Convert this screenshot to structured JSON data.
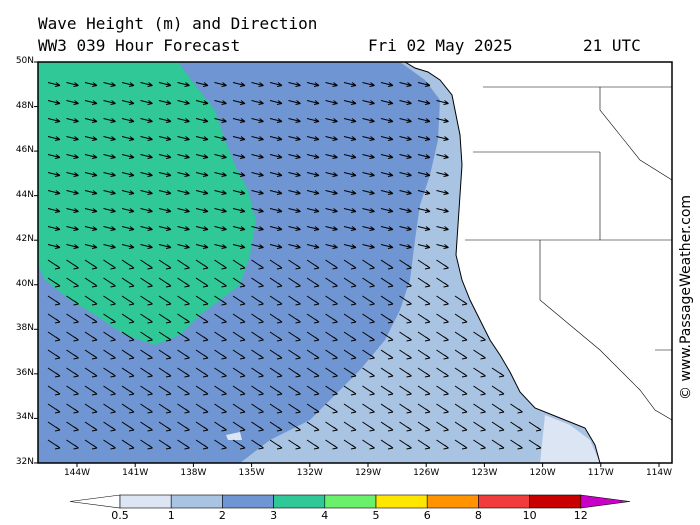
{
  "header": {
    "title": "Wave Height (m) and Direction",
    "model_line": "WW3 039 Hour Forecast",
    "date": "Fri 02 May 2025",
    "time": "21 UTC"
  },
  "lat_labels": [
    "50N",
    "48N",
    "46N",
    "44N",
    "42N",
    "40N",
    "38N",
    "36N",
    "34N",
    "32N"
  ],
  "lon_labels": [
    "144W",
    "141W",
    "138W",
    "135W",
    "132W",
    "129W",
    "126W",
    "123W",
    "120W",
    "117W",
    "114W"
  ],
  "scale": {
    "labels": [
      "0.5",
      "1",
      "2",
      "3",
      "4",
      "5",
      "6",
      "8",
      "10",
      "12"
    ],
    "colors": [
      "#dbe5f4",
      "#a9c3e2",
      "#6f95d2",
      "#2fc896",
      "#6bf06b",
      "#ffe600",
      "#ff9300",
      "#f23c3c",
      "#c80000",
      "#c800c8"
    ]
  },
  "fills": {
    "low": "#a9c3e2",
    "mid": "#6f95d2",
    "high": "#2fc896",
    "land": "#ffffff",
    "coast": "#000000"
  },
  "credit": "© www.PassageWeather.com",
  "wave_direction": "from west-northwest, arrows pointing east-southeast"
}
